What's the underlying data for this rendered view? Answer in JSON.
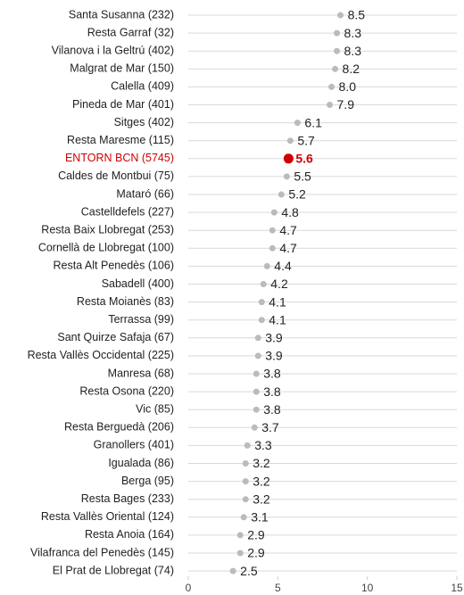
{
  "chart_data": {
    "type": "dot",
    "categories": [
      "Santa Susanna (232)",
      "Resta Garraf (32)",
      "Vilanova i la Geltrú (402)",
      "Malgrat de Mar (150)",
      "Calella (409)",
      "Pineda de Mar (401)",
      "Sitges (402)",
      "Resta Maresme (115)",
      "ENTORN BCN (5745)",
      "Caldes de Montbui (75)",
      "Mataró (66)",
      "Castelldefels (227)",
      "Resta Baix Llobregat (253)",
      "Cornellà de Llobregat (100)",
      "Resta Alt Penedès (106)",
      "Sabadell (400)",
      "Resta Moianès (83)",
      "Terrassa (99)",
      "Sant Quirze Safaja (67)",
      "Resta Vallès Occidental (225)",
      "Manresa (68)",
      "Resta Osona (220)",
      "Vic (85)",
      "Resta Berguedà (206)",
      "Granollers (401)",
      "Igualada (86)",
      "Berga (95)",
      "Resta Bages (233)",
      "Resta Vallès Oriental (124)",
      "Resta Anoia (164)",
      "Vilafranca del Penedès (145)",
      "El Prat de Llobregat (74)"
    ],
    "values": [
      8.5,
      8.3,
      8.3,
      8.2,
      8.0,
      7.9,
      6.1,
      5.7,
      5.6,
      5.5,
      5.2,
      4.8,
      4.7,
      4.7,
      4.4,
      4.2,
      4.1,
      4.1,
      3.9,
      3.9,
      3.8,
      3.8,
      3.8,
      3.7,
      3.3,
      3.2,
      3.2,
      3.2,
      3.1,
      2.9,
      2.9,
      2.5
    ],
    "value_labels": [
      "8.5",
      "8.3",
      "8.3",
      "8.2",
      "8.0",
      "7.9",
      "6.1",
      "5.7",
      "5.6",
      "5.5",
      "5.2",
      "4.8",
      "4.7",
      "4.7",
      "4.4",
      "4.2",
      "4.1",
      "4.1",
      "3.9",
      "3.9",
      "3.8",
      "3.8",
      "3.8",
      "3.7",
      "3.3",
      "3.2",
      "3.2",
      "3.2",
      "3.1",
      "2.9",
      "2.9",
      "2.5"
    ],
    "colors": [
      "#bbbbbb",
      "#bbbbbb",
      "#bbbbbb",
      "#bbbbbb",
      "#bbbbbb",
      "#bbbbbb",
      "#bbbbbb",
      "#bbbbbb",
      "#d00000",
      "#bbbbbb",
      "#bbbbbb",
      "#bbbbbb",
      "#bbbbbb",
      "#bbbbbb",
      "#bbbbbb",
      "#bbbbbb",
      "#bbbbbb",
      "#bbbbbb",
      "#bbbbbb",
      "#bbbbbb",
      "#bbbbbb",
      "#bbbbbb",
      "#bbbbbb",
      "#bbbbbb",
      "#bbbbbb",
      "#bbbbbb",
      "#bbbbbb",
      "#bbbbbb",
      "#bbbbbb",
      "#bbbbbb",
      "#bbbbbb",
      "#bbbbbb"
    ],
    "xlim": [
      0,
      15
    ],
    "xticks": [
      0,
      5,
      10,
      15
    ],
    "grid": true
  }
}
